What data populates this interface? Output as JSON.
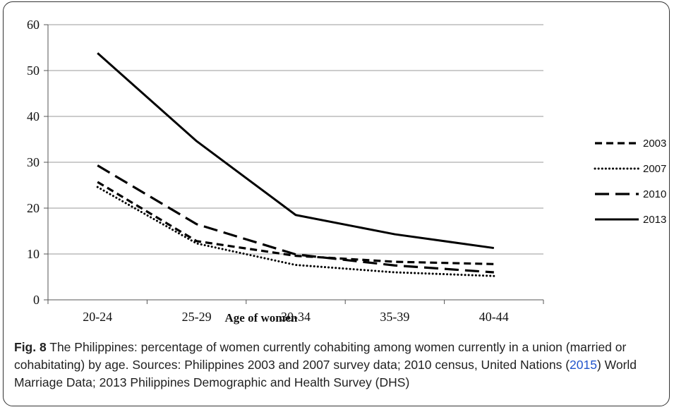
{
  "chart_data": {
    "type": "line",
    "categories": [
      "20-24",
      "25-29",
      "30-34",
      "35-39",
      "40-44"
    ],
    "series": [
      {
        "name": "2003",
        "values": [
          25.7,
          12.8,
          9.6,
          8.3,
          7.8
        ],
        "style": "dashed"
      },
      {
        "name": "2007",
        "values": [
          24.6,
          12.3,
          7.6,
          6.0,
          5.2
        ],
        "style": "dotted"
      },
      {
        "name": "2010",
        "values": [
          29.3,
          16.5,
          9.9,
          7.5,
          6.0
        ],
        "style": "long-dash"
      },
      {
        "name": "2013",
        "values": [
          53.8,
          34.6,
          18.5,
          14.3,
          11.3
        ],
        "style": "solid"
      }
    ],
    "xlabel": "Age of women",
    "ylabel": "",
    "ylim": [
      0,
      60
    ],
    "yticks": [
      "0",
      "10",
      "20",
      "30",
      "40",
      "50",
      "60"
    ],
    "grid": true,
    "legend_position": "right",
    "line_color": "#000000"
  },
  "caption": {
    "label": "Fig. 8",
    "text_before_ref": " The Philippines: percentage of women currently cohabiting among women currently in a union (married or cohabitating) by age. Sources: Philippines 2003 and 2007 survey data; 2010 census, United Nations (",
    "ref": "2015",
    "text_after_ref": ") World Marriage Data; 2013 Philippines Demographic and Health Survey (DHS)"
  }
}
